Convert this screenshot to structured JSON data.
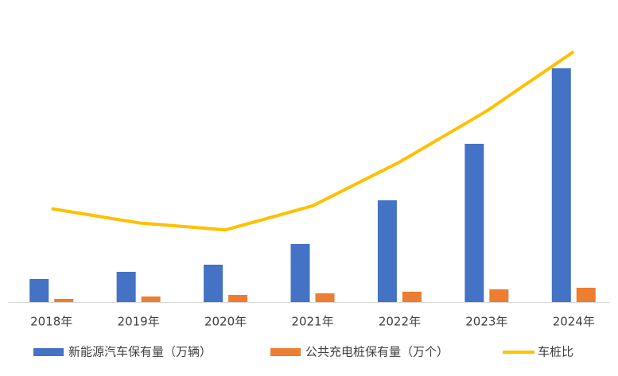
{
  "chart_data": {
    "type": "bar-line",
    "categories": [
      "2018年",
      "2019年",
      "2020年",
      "2021年",
      "2022年",
      "2023年",
      "2024年"
    ],
    "series": [
      {
        "name": "新能源汽车保有量（万辆）",
        "color": "#4472c4",
        "type": "bar",
        "values": [
          310,
          406,
          502,
          780,
          1367,
          2125,
          3140
        ]
      },
      {
        "name": "公共充电桩保有量（万个）",
        "color": "#ed7d31",
        "type": "bar",
        "values": [
          43,
          75,
          96,
          117,
          139,
          171,
          192
        ]
      },
      {
        "name": "车桩比",
        "color": "#ffc000",
        "type": "line",
        "axis": "y2",
        "values": [
          6.6,
          5.6,
          5.1,
          6.8,
          9.9,
          13.5,
          17.7
        ]
      }
    ],
    "ylim": [
      0,
      3800
    ],
    "y2lim": [
      0,
      20
    ],
    "legend": "bottom"
  }
}
